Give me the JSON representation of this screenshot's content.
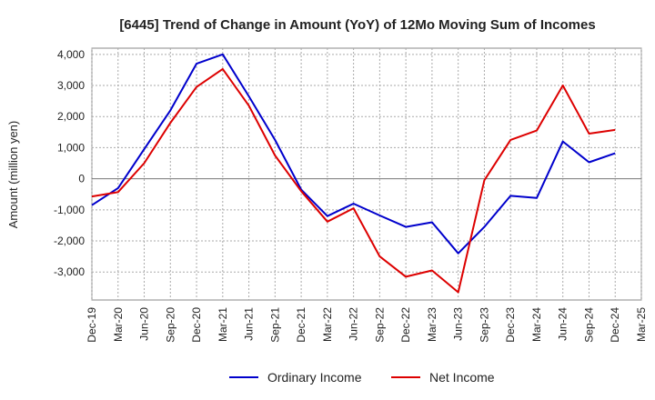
{
  "chart_data": {
    "type": "line",
    "title": "[6445]  Trend of Change in Amount (YoY) of 12Mo Moving Sum of Incomes",
    "xlabel": "",
    "ylabel": "Amount (million yen)",
    "categories": [
      "Dec-19",
      "Mar-20",
      "Jun-20",
      "Sep-20",
      "Dec-20",
      "Mar-21",
      "Jun-21",
      "Sep-21",
      "Dec-21",
      "Mar-22",
      "Jun-22",
      "Sep-22",
      "Dec-22",
      "Mar-23",
      "Jun-23",
      "Sep-23",
      "Dec-23",
      "Mar-24",
      "Jun-24",
      "Sep-24",
      "Dec-24",
      "Mar-25"
    ],
    "ylim": [
      -3900,
      4200
    ],
    "yticks": [
      4000,
      3000,
      2000,
      1000,
      0,
      -1000,
      -2000,
      -3000
    ],
    "ytick_labels": [
      "4,000",
      "3,000",
      "2,000",
      "1,000",
      "0",
      "-1,000",
      "-2,000",
      "-3,000"
    ],
    "grid": true,
    "legend_position": "bottom",
    "series": [
      {
        "name": "Ordinary Income",
        "color": "#0000cc",
        "values": [
          -850,
          -300,
          950,
          2200,
          3700,
          4000,
          2650,
          1250,
          -350,
          -1200,
          -800,
          -1180,
          -1550,
          -1400,
          -2400,
          -1550,
          -550,
          -620,
          1200,
          530,
          820,
          null
        ]
      },
      {
        "name": "Net Income",
        "color": "#dd0000",
        "values": [
          -570,
          -430,
          500,
          1800,
          2950,
          3530,
          2350,
          750,
          -400,
          -1380,
          -950,
          -2500,
          -3150,
          -2950,
          -3650,
          -50,
          1250,
          1550,
          3000,
          1450,
          1570,
          null
        ]
      }
    ]
  }
}
